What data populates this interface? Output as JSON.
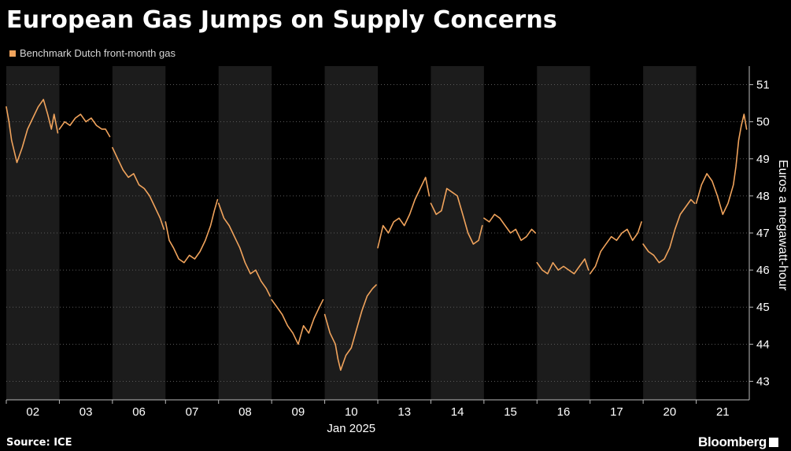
{
  "title": "European Gas Jumps on Supply Concerns",
  "source": "Source: ICE",
  "logo_text": "Bloomberg",
  "colors": {
    "background": "#000000",
    "shade": "#1c1c1c",
    "series": "#f0a35c",
    "grid": "#5a5a5a",
    "text": "#ffffff"
  },
  "chart_data": {
    "type": "line",
    "title": "European Gas Jumps on Supply Concerns",
    "ylabel": "Euros a megawatt-hour",
    "xlabel": "Jan 2025",
    "ylim": [
      42.5,
      51.5
    ],
    "y_ticks": [
      43,
      44,
      45,
      46,
      47,
      48,
      49,
      50,
      51
    ],
    "y_axis_side": "right",
    "categories": [
      "02",
      "03",
      "06",
      "07",
      "08",
      "09",
      "10",
      "13",
      "14",
      "15",
      "16",
      "17",
      "20",
      "21"
    ],
    "x_axis_label": "Jan 2025",
    "grid": "horizontal dotted",
    "alternating_day_shading": true,
    "legend": "top-left",
    "series": [
      {
        "name": "Benchmark Dutch front-month gas",
        "color": "#f0a35c",
        "points": [
          [
            0.0,
            50.4
          ],
          [
            0.05,
            50.0
          ],
          [
            0.1,
            49.5
          ],
          [
            0.2,
            48.9
          ],
          [
            0.3,
            49.3
          ],
          [
            0.4,
            49.8
          ],
          [
            0.5,
            50.1
          ],
          [
            0.6,
            50.4
          ],
          [
            0.7,
            50.6
          ],
          [
            0.78,
            50.2
          ],
          [
            0.85,
            49.8
          ],
          [
            0.9,
            50.2
          ],
          [
            0.97,
            49.7
          ],
          [
            1.0,
            49.8
          ],
          [
            1.1,
            50.0
          ],
          [
            1.2,
            49.9
          ],
          [
            1.3,
            50.1
          ],
          [
            1.4,
            50.2
          ],
          [
            1.5,
            50.0
          ],
          [
            1.6,
            50.1
          ],
          [
            1.7,
            49.9
          ],
          [
            1.8,
            49.8
          ],
          [
            1.87,
            49.8
          ],
          [
            1.95,
            49.6
          ],
          [
            2.0,
            49.3
          ],
          [
            2.1,
            49.0
          ],
          [
            2.2,
            48.7
          ],
          [
            2.3,
            48.5
          ],
          [
            2.4,
            48.6
          ],
          [
            2.5,
            48.3
          ],
          [
            2.6,
            48.2
          ],
          [
            2.7,
            48.0
          ],
          [
            2.8,
            47.7
          ],
          [
            2.9,
            47.4
          ],
          [
            2.97,
            47.1
          ],
          [
            3.0,
            47.3
          ],
          [
            3.07,
            46.8
          ],
          [
            3.15,
            46.6
          ],
          [
            3.25,
            46.3
          ],
          [
            3.35,
            46.2
          ],
          [
            3.45,
            46.4
          ],
          [
            3.55,
            46.3
          ],
          [
            3.65,
            46.5
          ],
          [
            3.75,
            46.8
          ],
          [
            3.85,
            47.2
          ],
          [
            3.92,
            47.6
          ],
          [
            3.98,
            47.9
          ],
          [
            4.0,
            47.8
          ],
          [
            4.1,
            47.4
          ],
          [
            4.2,
            47.2
          ],
          [
            4.3,
            46.9
          ],
          [
            4.4,
            46.6
          ],
          [
            4.5,
            46.2
          ],
          [
            4.6,
            45.9
          ],
          [
            4.7,
            46.0
          ],
          [
            4.8,
            45.7
          ],
          [
            4.9,
            45.5
          ],
          [
            4.97,
            45.3
          ],
          [
            5.0,
            45.2
          ],
          [
            5.1,
            45.0
          ],
          [
            5.2,
            44.8
          ],
          [
            5.3,
            44.5
          ],
          [
            5.4,
            44.3
          ],
          [
            5.5,
            44.0
          ],
          [
            5.6,
            44.5
          ],
          [
            5.7,
            44.3
          ],
          [
            5.8,
            44.7
          ],
          [
            5.9,
            45.0
          ],
          [
            5.97,
            45.2
          ],
          [
            6.0,
            44.8
          ],
          [
            6.1,
            44.3
          ],
          [
            6.2,
            44.0
          ],
          [
            6.25,
            43.6
          ],
          [
            6.3,
            43.3
          ],
          [
            6.4,
            43.7
          ],
          [
            6.5,
            43.9
          ],
          [
            6.6,
            44.4
          ],
          [
            6.7,
            44.9
          ],
          [
            6.8,
            45.3
          ],
          [
            6.9,
            45.5
          ],
          [
            6.97,
            45.6
          ],
          [
            7.0,
            46.6
          ],
          [
            7.1,
            47.2
          ],
          [
            7.2,
            47.0
          ],
          [
            7.3,
            47.3
          ],
          [
            7.4,
            47.4
          ],
          [
            7.5,
            47.2
          ],
          [
            7.6,
            47.5
          ],
          [
            7.7,
            47.9
          ],
          [
            7.8,
            48.2
          ],
          [
            7.9,
            48.5
          ],
          [
            7.97,
            48.0
          ],
          [
            8.0,
            47.8
          ],
          [
            8.1,
            47.5
          ],
          [
            8.2,
            47.6
          ],
          [
            8.3,
            48.2
          ],
          [
            8.4,
            48.1
          ],
          [
            8.5,
            48.0
          ],
          [
            8.6,
            47.5
          ],
          [
            8.7,
            47.0
          ],
          [
            8.8,
            46.7
          ],
          [
            8.9,
            46.8
          ],
          [
            8.97,
            47.2
          ],
          [
            9.0,
            47.4
          ],
          [
            9.1,
            47.3
          ],
          [
            9.2,
            47.5
          ],
          [
            9.3,
            47.4
          ],
          [
            9.4,
            47.2
          ],
          [
            9.5,
            47.0
          ],
          [
            9.6,
            47.1
          ],
          [
            9.7,
            46.8
          ],
          [
            9.8,
            46.9
          ],
          [
            9.9,
            47.1
          ],
          [
            9.97,
            47.0
          ],
          [
            10.0,
            46.2
          ],
          [
            10.1,
            46.0
          ],
          [
            10.2,
            45.9
          ],
          [
            10.3,
            46.2
          ],
          [
            10.4,
            46.0
          ],
          [
            10.5,
            46.1
          ],
          [
            10.6,
            46.0
          ],
          [
            10.7,
            45.9
          ],
          [
            10.8,
            46.1
          ],
          [
            10.9,
            46.3
          ],
          [
            10.97,
            46.0
          ],
          [
            11.0,
            45.9
          ],
          [
            11.1,
            46.1
          ],
          [
            11.2,
            46.5
          ],
          [
            11.3,
            46.7
          ],
          [
            11.4,
            46.9
          ],
          [
            11.5,
            46.8
          ],
          [
            11.6,
            47.0
          ],
          [
            11.7,
            47.1
          ],
          [
            11.8,
            46.8
          ],
          [
            11.9,
            47.0
          ],
          [
            11.97,
            47.3
          ],
          [
            12.0,
            46.7
          ],
          [
            12.1,
            46.5
          ],
          [
            12.2,
            46.4
          ],
          [
            12.3,
            46.2
          ],
          [
            12.4,
            46.3
          ],
          [
            12.5,
            46.6
          ],
          [
            12.6,
            47.1
          ],
          [
            12.7,
            47.5
          ],
          [
            12.8,
            47.7
          ],
          [
            12.9,
            47.9
          ],
          [
            12.97,
            47.8
          ],
          [
            13.0,
            47.8
          ],
          [
            13.1,
            48.3
          ],
          [
            13.2,
            48.6
          ],
          [
            13.3,
            48.4
          ],
          [
            13.4,
            48.0
          ],
          [
            13.5,
            47.5
          ],
          [
            13.6,
            47.8
          ],
          [
            13.7,
            48.3
          ],
          [
            13.75,
            48.8
          ],
          [
            13.8,
            49.5
          ],
          [
            13.85,
            49.9
          ],
          [
            13.9,
            50.2
          ],
          [
            13.95,
            49.8
          ],
          [
            14.0,
            49.6
          ]
        ]
      }
    ]
  }
}
